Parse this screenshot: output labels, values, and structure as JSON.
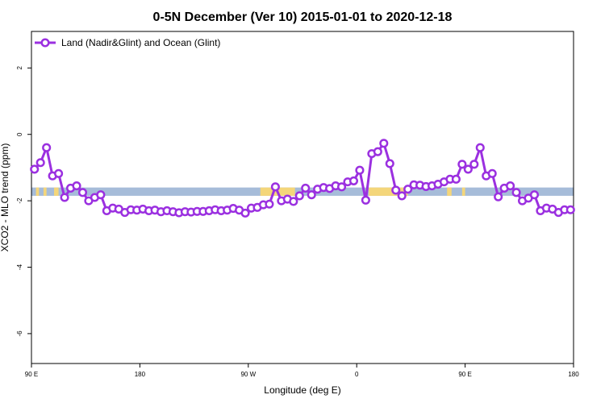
{
  "chart_data": {
    "type": "line",
    "title": "0-5N December (Ver 10)   2015-01-01 to 2020-12-18",
    "xlabel": "Longitude (deg E)",
    "ylabel": "XCO2 - MLO trend (ppm)",
    "xlim": [
      90,
      450
    ],
    "ylim": [
      -6.9,
      3.1
    ],
    "x_ticks": [
      {
        "value": 90,
        "label": "90 E"
      },
      {
        "value": 162,
        "label": "180"
      },
      {
        "value": 234,
        "label": "90 W"
      },
      {
        "value": 306,
        "label": "0"
      },
      {
        "value": 378,
        "label": "90 E"
      },
      {
        "value": 450,
        "label": "180"
      }
    ],
    "y_ticks": [
      {
        "value": 2,
        "label": "2"
      },
      {
        "value": 0,
        "label": "0"
      },
      {
        "value": -2,
        "label": "-2"
      },
      {
        "value": -4,
        "label": "-4"
      },
      {
        "value": -6,
        "label": "-6"
      }
    ],
    "grid": false,
    "legend_position": "top-left",
    "colors": {
      "series": "#9b30e0",
      "ocean_band": "#a6bcd9",
      "land_band": "#f4d67a"
    },
    "band": {
      "y_range": [
        -1.85,
        -1.6
      ],
      "land_segments": [
        [
          93,
          95
        ],
        [
          98,
          100
        ],
        [
          105,
          108
        ],
        [
          242,
          265
        ],
        [
          314,
          340
        ],
        [
          366,
          369
        ],
        [
          376,
          378
        ]
      ]
    },
    "series": [
      {
        "name": "Land (Nadir&Glint) and Ocean (Glint)",
        "x": [
          92,
          96,
          100,
          104,
          108,
          112,
          116,
          120,
          124,
          128,
          132,
          136,
          140,
          144,
          148,
          152,
          156,
          160,
          164,
          168,
          172,
          176,
          180,
          184,
          188,
          192,
          196,
          200,
          204,
          208,
          212,
          216,
          220,
          224,
          228,
          232,
          236,
          240,
          244,
          248,
          252,
          256,
          260,
          264,
          268,
          272,
          276,
          280,
          284,
          288,
          292,
          296,
          300,
          304,
          308,
          312,
          316,
          320,
          324,
          328,
          332,
          336,
          340,
          344,
          348,
          352,
          356,
          360,
          364,
          368,
          372,
          376,
          380,
          384,
          388,
          392,
          396,
          400,
          404,
          408,
          412,
          416,
          420,
          424,
          428,
          432,
          436,
          440,
          444,
          448
        ],
        "values": [
          -1.05,
          -0.85,
          -0.4,
          -1.25,
          -1.18,
          -1.9,
          -1.62,
          -1.55,
          -1.75,
          -2.0,
          -1.9,
          -1.82,
          -2.3,
          -2.22,
          -2.25,
          -2.35,
          -2.27,
          -2.28,
          -2.25,
          -2.3,
          -2.28,
          -2.33,
          -2.3,
          -2.33,
          -2.36,
          -2.33,
          -2.34,
          -2.32,
          -2.32,
          -2.3,
          -2.27,
          -2.3,
          -2.28,
          -2.23,
          -2.28,
          -2.37,
          -2.22,
          -2.2,
          -2.12,
          -2.1,
          -1.58,
          -2.0,
          -1.95,
          -2.02,
          -1.85,
          -1.62,
          -1.82,
          -1.65,
          -1.6,
          -1.63,
          -1.55,
          -1.58,
          -1.43,
          -1.4,
          -1.08,
          -1.98,
          -0.58,
          -0.52,
          -0.27,
          -0.88,
          -1.68,
          -1.85,
          -1.65,
          -1.52,
          -1.53,
          -1.57,
          -1.55,
          -1.5,
          -1.43,
          -1.35,
          -1.35,
          -0.9,
          -1.05,
          -0.9,
          -0.4,
          -1.25,
          -1.18,
          -1.88,
          -1.62,
          -1.55,
          -1.75,
          -2.0,
          -1.92,
          -1.82,
          -2.3,
          -2.22,
          -2.25,
          -2.35,
          -2.27,
          -2.27
        ]
      }
    ]
  }
}
